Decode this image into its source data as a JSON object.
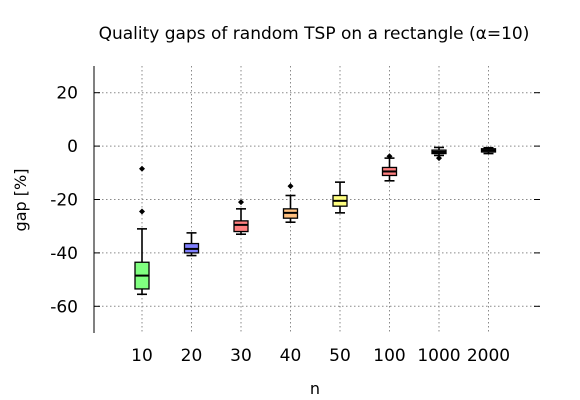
{
  "chart_data": {
    "type": "box",
    "title": "Quality gaps of random TSP on a rectangle (α=10)",
    "xlabel": "n",
    "ylabel": "gap [%]",
    "ylim": [
      -70,
      30
    ],
    "yticks": [
      20,
      0,
      -20,
      -40,
      -60
    ],
    "grid": true,
    "categories": [
      "10",
      "20",
      "30",
      "40",
      "50",
      "100",
      "1000",
      "2000"
    ],
    "boxes": [
      {
        "category": "10",
        "color": "#80ff80",
        "whisker_low": -55.5,
        "q1": -53.5,
        "median": -48.5,
        "q3": -43.5,
        "whisker_high": -31,
        "outliers": [
          -8.5,
          -24.5
        ]
      },
      {
        "category": "20",
        "color": "#8080ff",
        "whisker_low": -41,
        "q1": -40,
        "median": -38.5,
        "q3": -36.5,
        "whisker_high": -32.5,
        "outliers": []
      },
      {
        "category": "30",
        "color": "#ff8080",
        "whisker_low": -33,
        "q1": -32,
        "median": -29.5,
        "q3": -28,
        "whisker_high": -23.5,
        "outliers": [
          -21
        ]
      },
      {
        "category": "40",
        "color": "#ffc080",
        "whisker_low": -28.5,
        "q1": -27,
        "median": -25,
        "q3": -23.5,
        "whisker_high": -18.5,
        "outliers": [
          -15
        ]
      },
      {
        "category": "50",
        "color": "#ffff80",
        "whisker_low": -25,
        "q1": -22.5,
        "median": -20.5,
        "q3": -18.5,
        "whisker_high": -13.5,
        "outliers": []
      },
      {
        "category": "100",
        "color": "#ff8080",
        "whisker_low": -13,
        "q1": -11,
        "median": -9.5,
        "q3": -8,
        "whisker_high": -4.5,
        "outliers": [
          -3.8
        ]
      },
      {
        "category": "1000",
        "color": "#808080",
        "whisker_low": -3.5,
        "q1": -2.8,
        "median": -2.2,
        "q3": -1.5,
        "whisker_high": -0.5,
        "outliers": [
          -4.5
        ]
      },
      {
        "category": "2000",
        "color": "#808080",
        "whisker_low": -2.8,
        "q1": -2.2,
        "median": -1.6,
        "q3": -1.0,
        "whisker_high": -0.6,
        "outliers": []
      }
    ]
  }
}
